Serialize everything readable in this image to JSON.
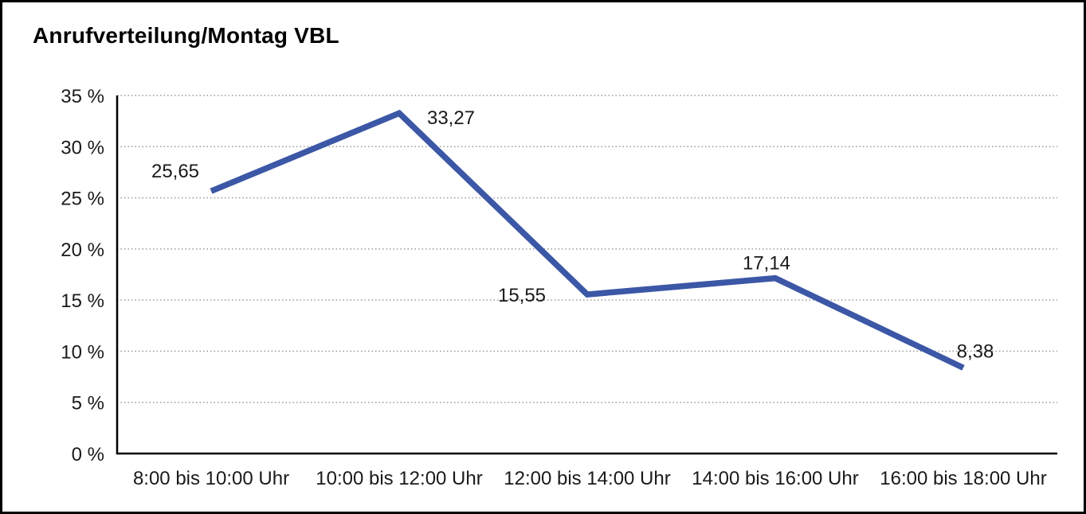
{
  "title": "Anrufverteilung/Montag VBL",
  "colors": {
    "line": "#3B57A6",
    "grid": "#999999",
    "axis": "#000000",
    "text": "#1a1a1a",
    "background": "#ffffff",
    "border": "#000000"
  },
  "chart_data": {
    "type": "line",
    "title": "Anrufverteilung/Montag VBL",
    "categories": [
      "8:00 bis 10:00 Uhr",
      "10:00 bis 12:00 Uhr",
      "12:00 bis 14:00 Uhr",
      "14:00 bis 16:00 Uhr",
      "16:00 bis 18:00 Uhr"
    ],
    "values": [
      25.65,
      33.27,
      15.55,
      17.14,
      8.38
    ],
    "point_labels": [
      "25,65",
      "33,27",
      "15,55",
      "17,14",
      "8,38"
    ],
    "y_ticks": [
      0,
      5,
      10,
      15,
      20,
      25,
      30,
      35
    ],
    "y_tick_labels": [
      "0 %",
      "5 %",
      "10 %",
      "15 %",
      "20 %",
      "25 %",
      "30 %",
      "35 %"
    ],
    "xlabel": "",
    "ylabel": "",
    "ylim": [
      0,
      35
    ],
    "grid": "horizontal-dotted",
    "legend_position": "none"
  }
}
